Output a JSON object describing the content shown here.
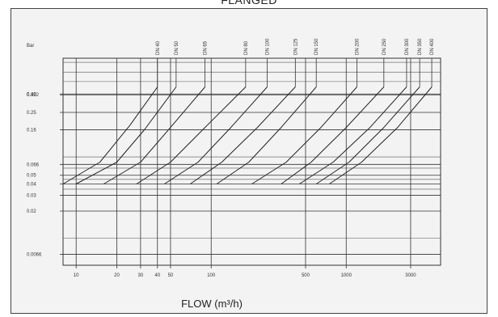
{
  "header": {
    "title": "FLANGED"
  },
  "chart_data": {
    "type": "line",
    "title": "FLANGED",
    "xlabel": "FLOW (m³/h)",
    "ylabel": "Bar",
    "x_scale": "log",
    "y_scale": "log",
    "xlim": [
      8,
      5000
    ],
    "ylim": [
      0.005,
      1
    ],
    "grid": true,
    "legend": "none",
    "x_ticks": [
      {
        "value": 10,
        "label": "10"
      },
      {
        "value": 20,
        "label": "20"
      },
      {
        "value": 30,
        "label": "30"
      },
      {
        "value": 40,
        "label": "40"
      },
      {
        "value": 50,
        "label": "50"
      },
      {
        "value": 100,
        "label": "100"
      },
      {
        "value": 500,
        "label": "500"
      },
      {
        "value": 1000,
        "label": "1000"
      },
      {
        "value": 3000,
        "label": "3000"
      }
    ],
    "y_ticks": [
      {
        "value": 0.4,
        "label": "0.40"
      },
      {
        "value": 0.392,
        "label": "0.392"
      },
      {
        "value": 0.25,
        "label": "0.25"
      },
      {
        "value": 0.16,
        "label": "0.16"
      },
      {
        "value": 0.066,
        "label": "0.066"
      },
      {
        "value": 0.05,
        "label": "0.05"
      },
      {
        "value": 0.04,
        "label": "0.04"
      },
      {
        "value": 0.03,
        "label": "0.03"
      },
      {
        "value": 0.02,
        "label": "0.02"
      },
      {
        "value": 0.0066,
        "label": "0.0066"
      }
    ],
    "series": [
      {
        "name": "DN 40",
        "x": [
          8,
          15,
          25,
          40
        ],
        "y": [
          0.04,
          0.07,
          0.18,
          0.48
        ]
      },
      {
        "name": "DN 50",
        "x": [
          10,
          20,
          32,
          55
        ],
        "y": [
          0.04,
          0.07,
          0.16,
          0.48
        ]
      },
      {
        "name": "DN 65",
        "x": [
          16,
          30,
          50,
          90
        ],
        "y": [
          0.04,
          0.07,
          0.17,
          0.48
        ]
      },
      {
        "name": "DN 80",
        "x": [
          28,
          50,
          90,
          180
        ],
        "y": [
          0.04,
          0.07,
          0.17,
          0.48
        ]
      },
      {
        "name": "DN 100",
        "x": [
          45,
          80,
          140,
          260
        ],
        "y": [
          0.04,
          0.07,
          0.17,
          0.48
        ]
      },
      {
        "name": "DN 125",
        "x": [
          70,
          120,
          220,
          420
        ],
        "y": [
          0.04,
          0.07,
          0.17,
          0.48
        ]
      },
      {
        "name": "DN 150",
        "x": [
          110,
          190,
          330,
          600
        ],
        "y": [
          0.04,
          0.07,
          0.17,
          0.48
        ]
      },
      {
        "name": "DN 200",
        "x": [
          200,
          360,
          650,
          1200
        ],
        "y": [
          0.04,
          0.07,
          0.17,
          0.48
        ]
      },
      {
        "name": "DN 250",
        "x": [
          330,
          550,
          1000,
          1900
        ],
        "y": [
          0.04,
          0.07,
          0.17,
          0.48
        ]
      },
      {
        "name": "DN 300",
        "x": [
          450,
          800,
          1500,
          2800
        ],
        "y": [
          0.04,
          0.07,
          0.17,
          0.48
        ]
      },
      {
        "name": "DN 350",
        "x": [
          600,
          1050,
          1900,
          3500
        ],
        "y": [
          0.04,
          0.07,
          0.17,
          0.48
        ]
      },
      {
        "name": "DN 400",
        "x": [
          750,
          1300,
          2400,
          4300
        ],
        "y": [
          0.04,
          0.07,
          0.17,
          0.48
        ]
      }
    ]
  }
}
